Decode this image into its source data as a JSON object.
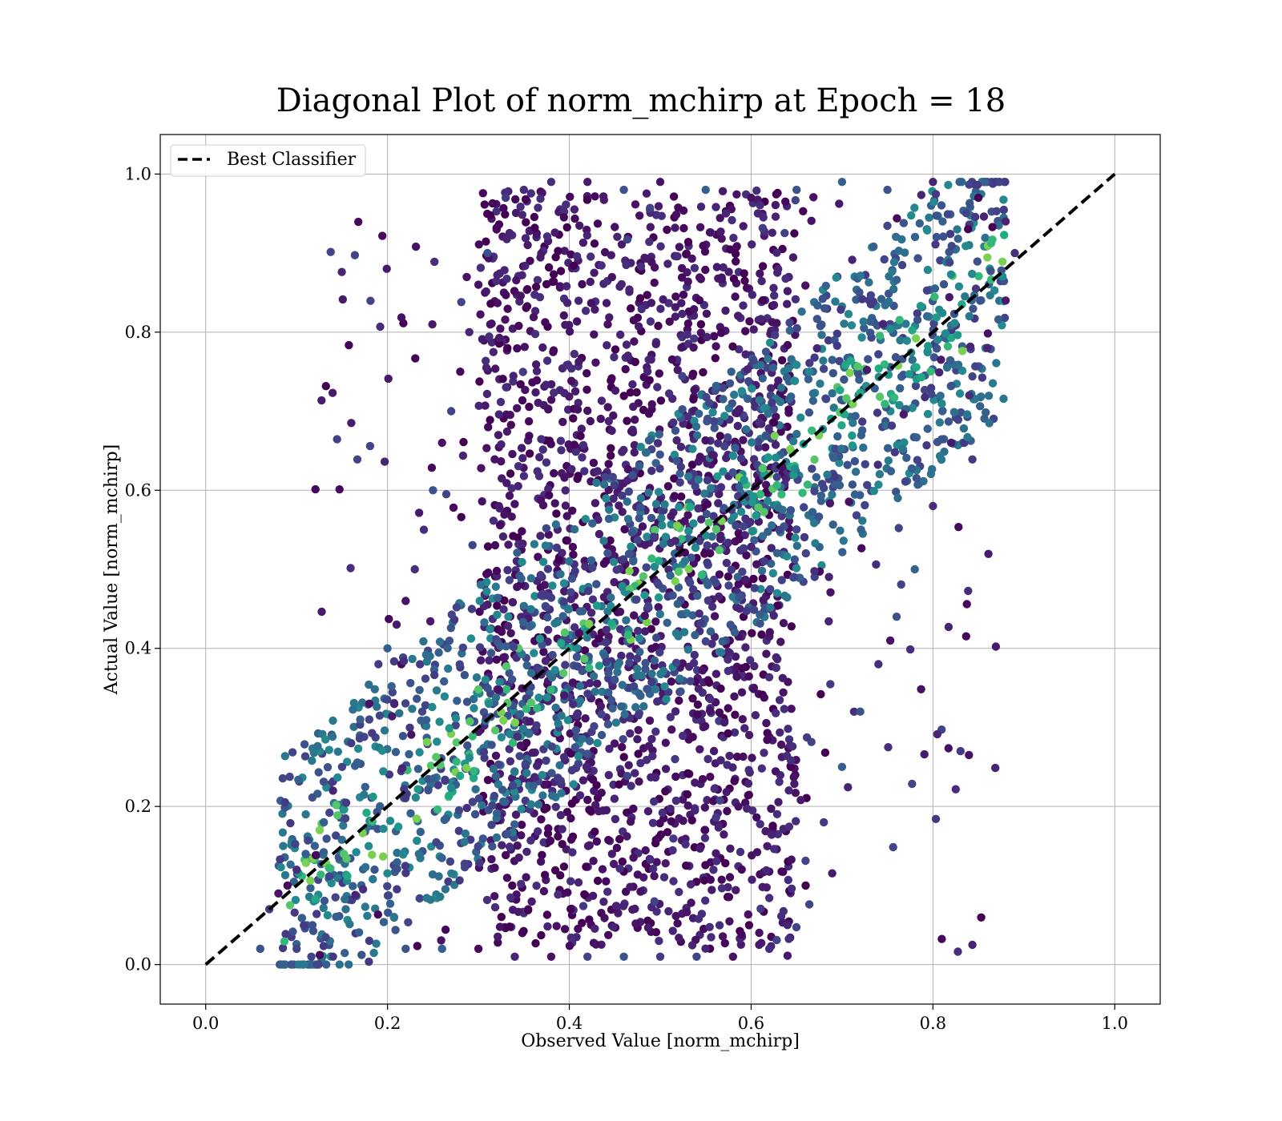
{
  "chart_data": {
    "type": "scatter",
    "title": "Diagonal Plot of norm_mchirp at Epoch = 18",
    "xlabel": "Observed Value [norm_mchirp]",
    "ylabel": "Actual Value [norm_mchirp]",
    "xlim": [
      -0.05,
      1.05
    ],
    "ylim": [
      -0.05,
      1.05
    ],
    "xticks": [
      "0.0",
      "0.2",
      "0.4",
      "0.6",
      "0.8",
      "1.0"
    ],
    "yticks": [
      "0.0",
      "0.2",
      "0.4",
      "0.6",
      "0.8",
      "1.0"
    ],
    "xtick_values": [
      0.0,
      0.2,
      0.4,
      0.6,
      0.8,
      1.0
    ],
    "ytick_values": [
      0.0,
      0.2,
      0.4,
      0.6,
      0.8,
      1.0
    ],
    "grid": true,
    "legend": {
      "placement": "top-left",
      "entries": [
        "Best Classifier"
      ]
    },
    "reference_line": {
      "name": "Best Classifier",
      "x": [
        0.0,
        1.0
      ],
      "y": [
        0.0,
        1.0
      ],
      "style": "dashed",
      "color": "#000000"
    },
    "colormap": "viridis",
    "series": [
      {
        "points": [
          [
            0.06,
            0.02
          ],
          [
            0.07,
            0.07
          ],
          [
            0.08,
            0.09
          ],
          [
            0.09,
            0.1
          ],
          [
            0.1,
            0.12
          ],
          [
            0.11,
            0.14
          ],
          [
            0.12,
            0.15
          ],
          [
            0.13,
            0.18
          ],
          [
            0.14,
            0.22
          ],
          [
            0.15,
            0.25
          ],
          [
            0.16,
            0.28
          ],
          [
            0.17,
            0.31
          ],
          [
            0.18,
            0.33
          ],
          [
            0.19,
            0.38
          ],
          [
            0.2,
            0.4
          ],
          [
            0.21,
            0.43
          ],
          [
            0.22,
            0.46
          ],
          [
            0.23,
            0.5
          ],
          [
            0.24,
            0.55
          ],
          [
            0.25,
            0.6
          ],
          [
            0.26,
            0.66
          ],
          [
            0.27,
            0.7
          ],
          [
            0.28,
            0.75
          ],
          [
            0.29,
            0.8
          ],
          [
            0.3,
            0.86
          ],
          [
            0.31,
            0.9
          ],
          [
            0.32,
            0.93
          ],
          [
            0.33,
            0.97
          ],
          [
            0.35,
            0.98
          ],
          [
            0.38,
            0.99
          ],
          [
            0.42,
            0.99
          ],
          [
            0.46,
            0.98
          ],
          [
            0.5,
            0.99
          ],
          [
            0.55,
            0.98
          ],
          [
            0.6,
            0.97
          ],
          [
            0.65,
            0.98
          ],
          [
            0.7,
            0.99
          ],
          [
            0.75,
            0.98
          ],
          [
            0.8,
            0.99
          ],
          [
            0.85,
            0.97
          ],
          [
            0.88,
            0.94
          ],
          [
            0.89,
            0.9
          ],
          [
            0.88,
            0.84
          ],
          [
            0.86,
            0.78
          ],
          [
            0.84,
            0.72
          ],
          [
            0.82,
            0.66
          ],
          [
            0.8,
            0.58
          ],
          [
            0.78,
            0.5
          ],
          [
            0.76,
            0.44
          ],
          [
            0.74,
            0.38
          ],
          [
            0.72,
            0.32
          ],
          [
            0.7,
            0.25
          ],
          [
            0.68,
            0.18
          ],
          [
            0.66,
            0.1
          ],
          [
            0.64,
            0.05
          ],
          [
            0.62,
            0.02
          ],
          [
            0.58,
            0.01
          ],
          [
            0.54,
            0.01
          ],
          [
            0.5,
            0.01
          ],
          [
            0.46,
            0.01
          ],
          [
            0.42,
            0.01
          ],
          [
            0.38,
            0.01
          ],
          [
            0.34,
            0.01
          ],
          [
            0.3,
            0.02
          ],
          [
            0.26,
            0.02
          ],
          [
            0.22,
            0.02
          ],
          [
            0.18,
            0.03
          ],
          [
            0.14,
            0.01
          ],
          [
            0.1,
            0.02
          ]
        ]
      }
    ]
  }
}
